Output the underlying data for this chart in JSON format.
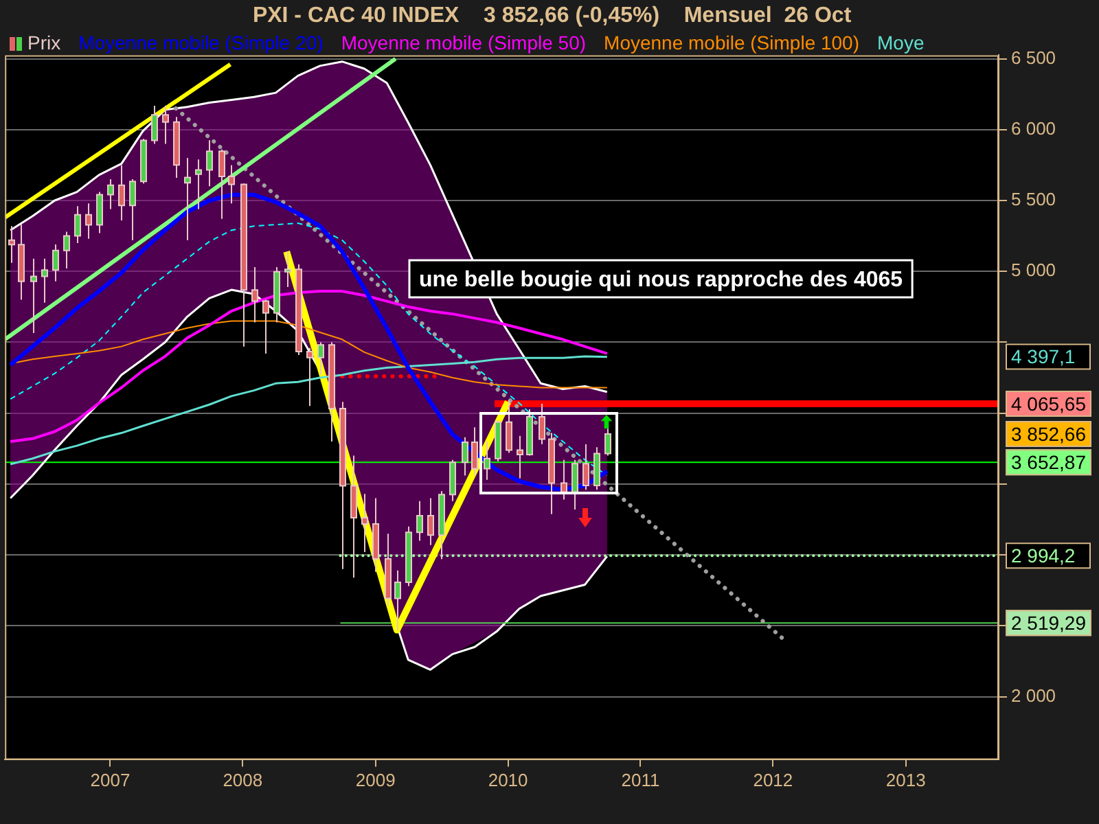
{
  "chart_data": {
    "type": "candlestick",
    "title": "PXI - CAC 40 INDEX    3 852,66 (-0,45%)    Mensuel  26 Oct",
    "xlim": [
      "2006-03-17",
      "2013-09-14"
    ],
    "xticks": [
      "2007",
      "2008",
      "2009",
      "2010",
      "2011",
      "2012",
      "2013"
    ],
    "ylim": [
      1555,
      6525
    ],
    "yticks": [
      {
        "value": 2000,
        "label": "2 000"
      },
      {
        "value": 2500,
        "label": null
      },
      {
        "value": 3000,
        "label": null
      },
      {
        "value": 3500,
        "label": null
      },
      {
        "value": 4000,
        "label": null
      },
      {
        "value": 4500,
        "label": null
      },
      {
        "value": 5000,
        "label": "5 000"
      },
      {
        "value": 5500,
        "label": "5 500"
      },
      {
        "value": 6000,
        "label": "6 000"
      },
      {
        "value": 6500,
        "label": "6 500"
      }
    ],
    "grid": "y",
    "legend": "top left",
    "series": [
      {
        "type": "candlestick",
        "name": "Prix",
        "color": "#e8c8c8",
        "x": [
          "2006-04",
          "2006-05",
          "2006-06",
          "2006-07",
          "2006-08",
          "2006-09",
          "2006-10",
          "2006-11",
          "2006-12",
          "2007-01",
          "2007-02",
          "2007-03",
          "2007-04",
          "2007-05",
          "2007-06",
          "2007-07",
          "2007-08",
          "2007-09",
          "2007-10",
          "2007-11",
          "2007-12",
          "2008-01",
          "2008-02",
          "2008-03",
          "2008-04",
          "2008-05",
          "2008-06",
          "2008-07",
          "2008-08",
          "2008-09",
          "2008-10",
          "2008-11",
          "2008-12",
          "2009-01",
          "2009-02",
          "2009-03",
          "2009-04",
          "2009-05",
          "2009-06",
          "2009-07",
          "2009-08",
          "2009-09",
          "2009-10",
          "2009-11",
          "2009-12",
          "2010-01",
          "2010-02",
          "2010-03",
          "2010-04",
          "2010-05",
          "2010-06",
          "2010-07",
          "2010-08",
          "2010-09",
          "2010-10"
        ],
        "ohlc": [
          [
            5220,
            5320,
            5060,
            5189
          ],
          [
            5189,
            5330,
            4800,
            4930
          ],
          [
            4930,
            5090,
            4565,
            4965
          ],
          [
            4965,
            5090,
            4780,
            5009
          ],
          [
            5009,
            5190,
            4930,
            5147
          ],
          [
            5147,
            5280,
            5020,
            5250
          ],
          [
            5250,
            5460,
            5200,
            5399
          ],
          [
            5399,
            5480,
            5230,
            5328
          ],
          [
            5328,
            5560,
            5270,
            5541
          ],
          [
            5541,
            5650,
            5440,
            5608
          ],
          [
            5608,
            5750,
            5360,
            5465
          ],
          [
            5465,
            5650,
            5220,
            5634
          ],
          [
            5634,
            5935,
            5620,
            5924
          ],
          [
            5924,
            6168,
            5900,
            6104
          ],
          [
            6104,
            6170,
            5900,
            6054
          ],
          [
            6054,
            6090,
            5660,
            5751
          ],
          [
            5625,
            5800,
            5220,
            5662
          ],
          [
            5685,
            5790,
            5440,
            5715
          ],
          [
            5715,
            5925,
            5600,
            5848
          ],
          [
            5848,
            5860,
            5370,
            5670
          ],
          [
            5670,
            5750,
            5480,
            5614
          ],
          [
            5614,
            5620,
            4470,
            4869
          ],
          [
            4869,
            5030,
            4640,
            4790
          ],
          [
            4790,
            4800,
            4420,
            4707
          ],
          [
            4707,
            5030,
            4640,
            4997
          ],
          [
            4997,
            5140,
            4890,
            5014
          ],
          [
            5014,
            5050,
            4410,
            4434
          ],
          [
            4434,
            4460,
            4050,
            4392
          ],
          [
            4392,
            4500,
            4270,
            4482
          ],
          [
            4482,
            4500,
            3800,
            4032
          ],
          [
            4032,
            4080,
            2900,
            3487
          ],
          [
            3487,
            3700,
            2840,
            3262
          ],
          [
            3262,
            3430,
            3020,
            3218
          ],
          [
            3218,
            3400,
            2880,
            2973
          ],
          [
            2973,
            3150,
            2640,
            2693
          ],
          [
            2693,
            2890,
            2465,
            2807
          ],
          [
            2807,
            3200,
            2780,
            3159
          ],
          [
            3159,
            3380,
            3100,
            3277
          ],
          [
            3277,
            3400,
            3070,
            3140
          ],
          [
            3140,
            3450,
            2970,
            3426
          ],
          [
            3426,
            3670,
            3380,
            3653
          ],
          [
            3653,
            3830,
            3560,
            3795
          ],
          [
            3795,
            3900,
            3560,
            3608
          ],
          [
            3608,
            3800,
            3530,
            3680
          ],
          [
            3680,
            3950,
            3660,
            3936
          ],
          [
            3936,
            4088,
            3720,
            3739
          ],
          [
            3739,
            3840,
            3540,
            3708
          ],
          [
            3708,
            4027,
            3700,
            3974
          ],
          [
            3974,
            4065.65,
            3780,
            3817
          ],
          [
            3817,
            3860,
            3288,
            3507
          ],
          [
            3507,
            3670,
            3390,
            3443
          ],
          [
            3443,
            3670,
            3320,
            3643
          ],
          [
            3643,
            3780,
            3460,
            3490
          ],
          [
            3490,
            3760,
            3460,
            3715
          ],
          [
            3715,
            3890,
            3700,
            3852.66
          ]
        ],
        "colors": [
          "#e06464",
          "#e06464",
          "#4cd04c",
          "#4cd04c",
          "#4cd04c",
          "#4cd04c",
          "#4cd04c",
          "#e06464",
          "#4cd04c",
          "#4cd04c",
          "#e06464",
          "#4cd04c",
          "#4cd04c",
          "#4cd04c",
          "#e06464",
          "#e06464",
          "#4cd04c",
          "#4cd04c",
          "#4cd04c",
          "#e06464",
          "#e06464",
          "#e06464",
          "#e06464",
          "#e06464",
          "#4cd04c",
          "#4cd04c",
          "#e06464",
          "#e06464",
          "#4cd04c",
          "#e06464",
          "#e06464",
          "#e06464",
          "#e06464",
          "#e06464",
          "#e06464",
          "#4cd04c",
          "#4cd04c",
          "#4cd04c",
          "#e06464",
          "#4cd04c",
          "#4cd04c",
          "#4cd04c",
          "#e06464",
          "#4cd04c",
          "#4cd04c",
          "#e06464",
          "#e06464",
          "#4cd04c",
          "#e06464",
          "#e06464",
          "#e06464",
          "#4cd04c",
          "#e06464",
          "#4cd04c",
          "#4cd04c"
        ]
      },
      {
        "type": "line",
        "name": "Moyenne mobile (Simple 20)",
        "color": "#0000ff",
        "x": [
          "2006-04",
          "2006-06",
          "2006-08",
          "2006-10",
          "2006-12",
          "2007-02",
          "2007-04",
          "2007-06",
          "2007-08",
          "2007-10",
          "2007-12",
          "2008-02",
          "2008-04",
          "2008-06",
          "2008-08",
          "2008-10",
          "2008-12",
          "2009-02",
          "2009-04",
          "2009-06",
          "2009-08",
          "2009-12",
          "2010-02",
          "2010-04",
          "2010-06",
          "2010-08",
          "2010-10"
        ],
        "values": [
          4340,
          4470,
          4600,
          4740,
          4860,
          4990,
          5150,
          5290,
          5420,
          5500,
          5540,
          5540,
          5490,
          5410,
          5320,
          5140,
          4880,
          4600,
          4320,
          4080,
          3850,
          3600,
          3520,
          3480,
          3460,
          3490,
          3590
        ],
        "lower": [
          3400,
          3560,
          3740,
          3910,
          4070,
          4270,
          4380,
          4500,
          4680,
          4810,
          4870,
          4840,
          4720,
          4580,
          4300,
          3740,
          3270,
          2720,
          2260,
          2190,
          2300,
          2460,
          2620,
          2710,
          2750,
          2790,
          2990
        ],
        "upper": [
          5290,
          5390,
          5500,
          5560,
          5680,
          5760,
          5990,
          6140,
          6160,
          6190,
          6210,
          6230,
          6260,
          6380,
          6450,
          6480,
          6430,
          6330,
          6050,
          5750,
          5400,
          4700,
          4450,
          4210,
          4170,
          4190,
          4150
        ]
      },
      {
        "type": "line",
        "name": "Moyenne mobile (Simple 50)",
        "color": "#ff00ff",
        "x": [
          "2006-04",
          "2006-06",
          "2006-08",
          "2006-10",
          "2006-12",
          "2007-02",
          "2007-04",
          "2007-06",
          "2007-08",
          "2007-10",
          "2007-12",
          "2008-02",
          "2008-04",
          "2008-06",
          "2008-08",
          "2008-10",
          "2008-12",
          "2009-02",
          "2009-04",
          "2009-06",
          "2009-08",
          "2009-10",
          "2009-12",
          "2010-02",
          "2010-04",
          "2010-06",
          "2010-08",
          "2010-10"
        ],
        "values": [
          3800,
          3820,
          3870,
          3950,
          4070,
          4180,
          4300,
          4400,
          4530,
          4620,
          4720,
          4780,
          4830,
          4850,
          4860,
          4860,
          4830,
          4790,
          4750,
          4720,
          4700,
          4670,
          4640,
          4600,
          4560,
          4520,
          4470,
          4420
        ]
      },
      {
        "type": "line",
        "name": "Moyenne mobile (Simple 100)",
        "color": "#ff8c00",
        "x": [
          "2006-04",
          "2006-06",
          "2006-08",
          "2006-10",
          "2006-12",
          "2007-02",
          "2007-04",
          "2007-06",
          "2007-08",
          "2007-10",
          "2007-12",
          "2008-02",
          "2008-04",
          "2008-06",
          "2008-08",
          "2008-10",
          "2008-12",
          "2009-02",
          "2009-04",
          "2009-06",
          "2009-08",
          "2009-10",
          "2009-12",
          "2010-02",
          "2010-04",
          "2010-06",
          "2010-08",
          "2010-10"
        ],
        "values": [
          4350,
          4380,
          4400,
          4420,
          4440,
          4470,
          4520,
          4560,
          4600,
          4630,
          4650,
          4650,
          4650,
          4620,
          4570,
          4520,
          4430,
          4370,
          4320,
          4290,
          4250,
          4220,
          4200,
          4190,
          4180,
          4180,
          4180,
          4180
        ]
      },
      {
        "type": "line",
        "name": "Moye",
        "color": "#60e0d0",
        "x": [
          "2006-04",
          "2006-06",
          "2006-08",
          "2006-10",
          "2006-12",
          "2007-02",
          "2007-04",
          "2007-06",
          "2007-08",
          "2007-10",
          "2007-12",
          "2008-02",
          "2008-04",
          "2008-06",
          "2008-08",
          "2008-10",
          "2008-12",
          "2009-02",
          "2009-04",
          "2009-06",
          "2009-08",
          "2009-10",
          "2009-12",
          "2010-02",
          "2010-04",
          "2010-06",
          "2010-08",
          "2010-10"
        ],
        "values": [
          3640,
          3680,
          3730,
          3770,
          3820,
          3860,
          3910,
          3960,
          4010,
          4060,
          4120,
          4160,
          4210,
          4220,
          4250,
          4270,
          4300,
          4320,
          4330,
          4340,
          4350,
          4360,
          4380,
          4390,
          4390,
          4390,
          4400,
          4397.1
        ]
      },
      {
        "type": "line",
        "color": "#00ffff",
        "line_style": "dashed",
        "x": [
          "2006-04",
          "2006-06",
          "2006-08",
          "2006-10",
          "2006-12",
          "2007-02",
          "2007-04",
          "2007-06",
          "2007-08",
          "2007-10",
          "2007-12",
          "2008-02",
          "2008-04",
          "2008-06",
          "2008-08",
          "2008-10",
          "2008-12",
          "2009-02",
          "2009-04",
          "2009-06",
          "2009-08",
          "2009-10",
          "2009-12",
          "2010-02",
          "2010-04",
          "2010-06",
          "2010-08",
          "2010-10"
        ],
        "values": [
          4100,
          4190,
          4280,
          4390,
          4510,
          4680,
          4850,
          4970,
          5090,
          5210,
          5290,
          5320,
          5330,
          5340,
          5300,
          5220,
          5070,
          4900,
          4700,
          4560,
          4440,
          4330,
          4200,
          4070,
          3930,
          3800,
          3670,
          3560
        ]
      },
      {
        "type": "line",
        "color": "#ffff00",
        "x": [
          "2006-03-17",
          "2007-11-28"
        ],
        "values": [
          5380,
          6460
        ]
      },
      {
        "type": "line",
        "color": "#80ff80",
        "x": [
          "2006-03-17",
          "2009-02-25"
        ],
        "values": [
          4520,
          6500
        ]
      },
      {
        "type": "line",
        "color": "#ffff00",
        "x": [
          "2008-05",
          "2009-03",
          "2010-01"
        ],
        "values": [
          5140,
          2470,
          4080
        ]
      },
      {
        "type": "line",
        "color": "#a0a0a0",
        "line_style": "dotted",
        "x": [
          "2007-07",
          "2012-01-28"
        ],
        "values": [
          6150,
          2410
        ]
      },
      {
        "type": "line",
        "color": "#ff0000",
        "x": [
          "2009-11-25",
          "2013-09-14"
        ],
        "values": [
          4065.65,
          4065.65
        ],
        "value_labels": [
          null,
          "4 065,65"
        ]
      },
      {
        "type": "line",
        "color": "#a0ffa0",
        "line_style": "dotted",
        "x": [
          "2008-09-26",
          "2013-09-14"
        ],
        "values": [
          2994.2,
          2994.2
        ],
        "value_labels": [
          null,
          "2 994,2"
        ]
      },
      {
        "type": "line",
        "color": "#50d050",
        "x": [
          "2008-09-26",
          "2013-09-14"
        ],
        "values": [
          2519.29,
          2519.29
        ],
        "value_labels": [
          null,
          "2 519,29"
        ]
      },
      {
        "type": "line",
        "color": "#ff0000",
        "line_style": "dotted",
        "x": [
          "2008-08-16",
          "2009-06-21"
        ],
        "values": [
          4260,
          4260
        ]
      },
      {
        "type": "line",
        "color": "#ffffff",
        "x": [
          "2006-04",
          "2006-06",
          "2006-08",
          "2006-10",
          "2006-12",
          "2007-02",
          "2007-04",
          "2007-06",
          "2007-08",
          "2007-10",
          "2007-12",
          "2008-02",
          "2008-04",
          "2008-06",
          "2008-08",
          "2008-10",
          "2008-12",
          "2009-02",
          "2009-04",
          "2009-06",
          "2009-08",
          "2009-12",
          "2010-02",
          "2010-04",
          "2010-06",
          "2010-08",
          "2010-10"
        ],
        "values": [
          5290,
          5390,
          5500,
          5560,
          5680,
          5760,
          5990,
          6140,
          6160,
          6190,
          6210,
          6230,
          6260,
          6380,
          6450,
          6480,
          6430,
          6330,
          6050,
          5750,
          5400,
          4700,
          4450,
          4210,
          4170,
          4190,
          4150
        ]
      },
      {
        "type": "line",
        "color": "#ffffff",
        "x": [
          "2006-04",
          "2006-06",
          "2006-08",
          "2006-10",
          "2006-12",
          "2007-02",
          "2007-04",
          "2007-06",
          "2007-08",
          "2007-10",
          "2007-12",
          "2008-02",
          "2008-04",
          "2008-06",
          "2008-08",
          "2008-10",
          "2008-12",
          "2009-02",
          "2009-04",
          "2009-06",
          "2009-08",
          "2009-10",
          "2009-12",
          "2010-02",
          "2010-04",
          "2010-06",
          "2010-08",
          "2010-10"
        ],
        "values": [
          3400,
          3560,
          3740,
          3910,
          4070,
          4270,
          4380,
          4500,
          4680,
          4810,
          4870,
          4840,
          4720,
          4580,
          4300,
          3740,
          3270,
          2720,
          2260,
          2190,
          2300,
          2350,
          2460,
          2620,
          2710,
          2750,
          2790,
          2990
        ]
      }
    ],
    "ref_lines": [
      {
        "axis": "y",
        "value": 3652.87,
        "label": "3 652,87",
        "color": "#00ff00"
      }
    ],
    "annotations": [
      "une belle bougie qui nous rapproche des 4065",
      "3 852,66",
      "4 397,1"
    ]
  }
}
